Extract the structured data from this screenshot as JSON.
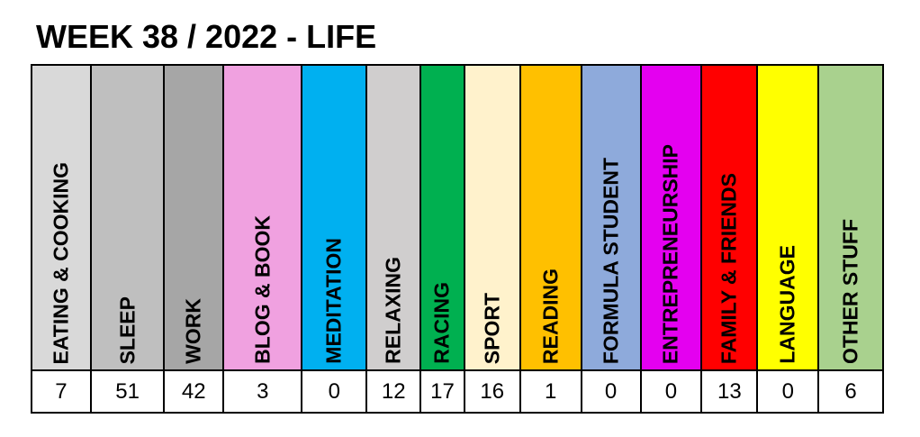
{
  "chart_data": {
    "type": "table",
    "title": "WEEK 38 / 2022 - LIFE",
    "categories": [
      {
        "label": "EATING & COOKING",
        "value": "7",
        "color": "#d9d9d9"
      },
      {
        "label": "SLEEP",
        "value": "51",
        "color": "#bfbfbf"
      },
      {
        "label": "WORK",
        "value": "42",
        "color": "#a6a6a6"
      },
      {
        "label": "BLOG & BOOK",
        "value": "3",
        "color": "#f0a1e0"
      },
      {
        "label": "MEDITATION",
        "value": "0",
        "color": "#00b0f0"
      },
      {
        "label": "RELAXING",
        "value": "12",
        "color": "#d0cece"
      },
      {
        "label": "RACING",
        "value": "17",
        "color": "#00b050"
      },
      {
        "label": "SPORT",
        "value": "16",
        "color": "#fff2cc"
      },
      {
        "label": "READING",
        "value": "1",
        "color": "#ffc000"
      },
      {
        "label": "FORMULA STUDENT",
        "value": "0",
        "color": "#8eaadb"
      },
      {
        "label": "ENTREPRENEURSHIP",
        "value": "0",
        "color": "#e400f0"
      },
      {
        "label": "FAMILY & FRIENDS",
        "value": "13",
        "color": "#ff0000"
      },
      {
        "label": "LANGUAGE",
        "value": "0",
        "color": "#ffff00"
      },
      {
        "label": "OTHER STUFF",
        "value": "6",
        "color": "#a9d18e"
      }
    ]
  }
}
